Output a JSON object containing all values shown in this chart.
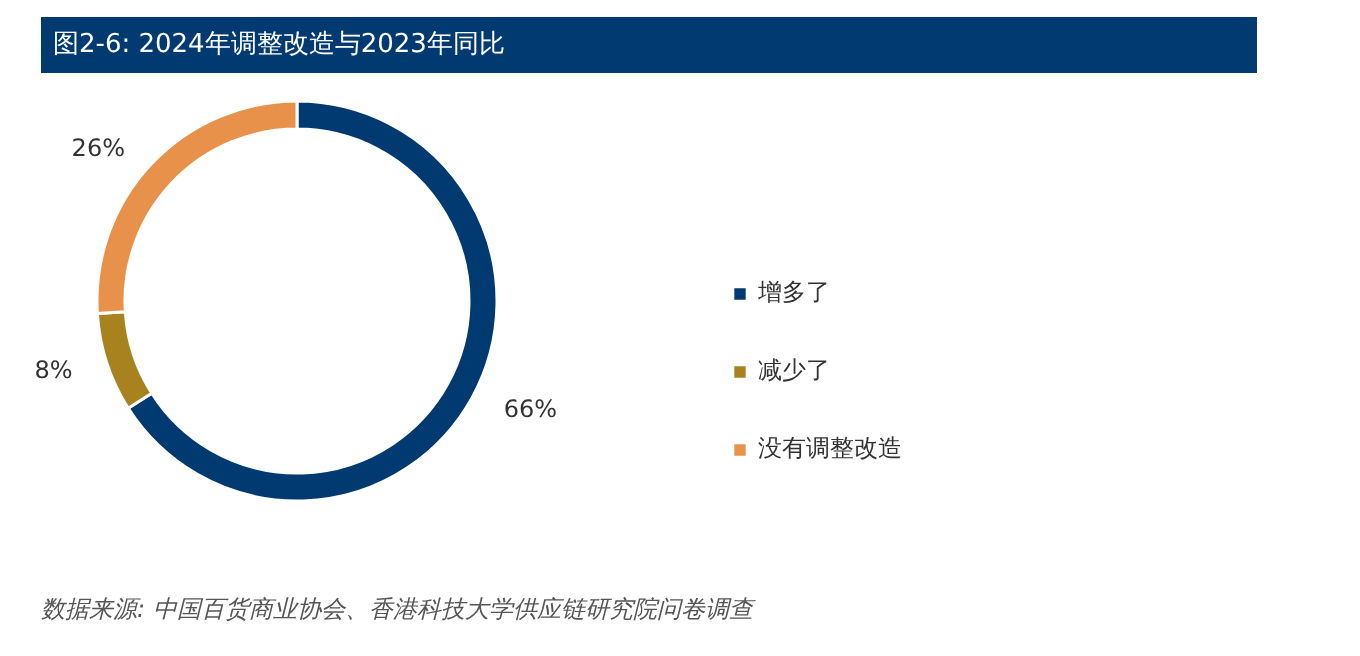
{
  "chart_data": {
    "type": "donut",
    "title": "图2-6: 2024年调整改造与2023年同比",
    "categories": [
      "增多了",
      "减少了",
      "没有调整改造"
    ],
    "values": [
      66,
      8,
      26
    ],
    "colors": [
      "#003a70",
      "#a8821f",
      "#e8914a"
    ],
    "value_labels": [
      "66%",
      "8%",
      "26%"
    ],
    "legend": "right",
    "annotations": [
      "数据来源: 中国百货商业协会、香港科技大学供应链研究院问卷调查"
    ]
  }
}
